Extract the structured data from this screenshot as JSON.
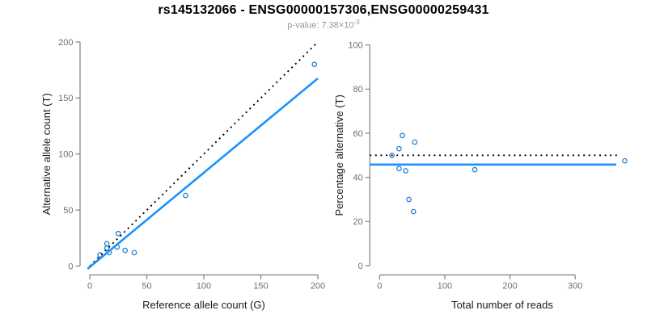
{
  "header": {
    "title": "rs145132066 - ENSG00000157306,ENSG00000259431",
    "subtitle_main": "p-value: 7.38×10",
    "subtitle_exponent": "-3"
  },
  "colors": {
    "point_stroke": "#2380D8",
    "fit_line": "#1E90FF",
    "reference_line": "#000000",
    "axis_line": "#808080",
    "tick_label": "#6E6E6E",
    "axis_title": "#1A1A1A",
    "title": "#000000",
    "subtitle": "#969696"
  },
  "chart_data": [
    {
      "type": "scatter",
      "name": "allele-counts",
      "title": "",
      "xlabel": "Reference allele count (G)",
      "ylabel": "Alternative allele count (T)",
      "xlim": [
        0,
        200
      ],
      "ylim": [
        0,
        200
      ],
      "xticks": [
        0,
        50,
        100,
        150,
        200
      ],
      "yticks": [
        0,
        50,
        100,
        150,
        200
      ],
      "grid": false,
      "points": [
        [
          197,
          180
        ],
        [
          84,
          63
        ],
        [
          25,
          29
        ],
        [
          15,
          20
        ],
        [
          15,
          16
        ],
        [
          24,
          17
        ],
        [
          31,
          14
        ],
        [
          39,
          12
        ],
        [
          17,
          12
        ],
        [
          9,
          10
        ]
      ],
      "lines": [
        {
          "name": "identity-line",
          "style": "dotted",
          "color_key": "reference_line",
          "from": [
            0,
            0
          ],
          "to": [
            199.5,
            199.5
          ]
        },
        {
          "name": "fit-line",
          "style": "solid",
          "color_key": "fit_line",
          "from": [
            -2,
            -2.5
          ],
          "to": [
            200,
            167.5
          ]
        }
      ]
    },
    {
      "type": "scatter",
      "name": "percentage-vs-reads",
      "title": "",
      "xlabel": "Total number of reads",
      "ylabel": "Percentage alternative (T)",
      "xlim": [
        0,
        377
      ],
      "ylim": [
        0,
        100
      ],
      "xticks": [
        0,
        100,
        200,
        300
      ],
      "yticks": [
        0,
        20,
        40,
        60,
        80,
        100
      ],
      "grid": false,
      "points": [
        [
          35,
          59
        ],
        [
          54,
          56
        ],
        [
          30,
          53
        ],
        [
          19,
          50
        ],
        [
          30,
          44
        ],
        [
          40,
          43
        ],
        [
          146,
          43.5
        ],
        [
          45,
          30
        ],
        [
          52,
          24.5
        ],
        [
          376,
          47.5
        ]
      ],
      "lines": [
        {
          "name": "fifty-percent-line",
          "style": "dotted",
          "color_key": "reference_line",
          "from": [
            -15,
            50
          ],
          "to": [
            368,
            50
          ]
        },
        {
          "name": "fit-line",
          "style": "solid",
          "color_key": "fit_line",
          "from": [
            -15,
            45.8
          ],
          "to": [
            363,
            45.8
          ]
        }
      ]
    }
  ]
}
